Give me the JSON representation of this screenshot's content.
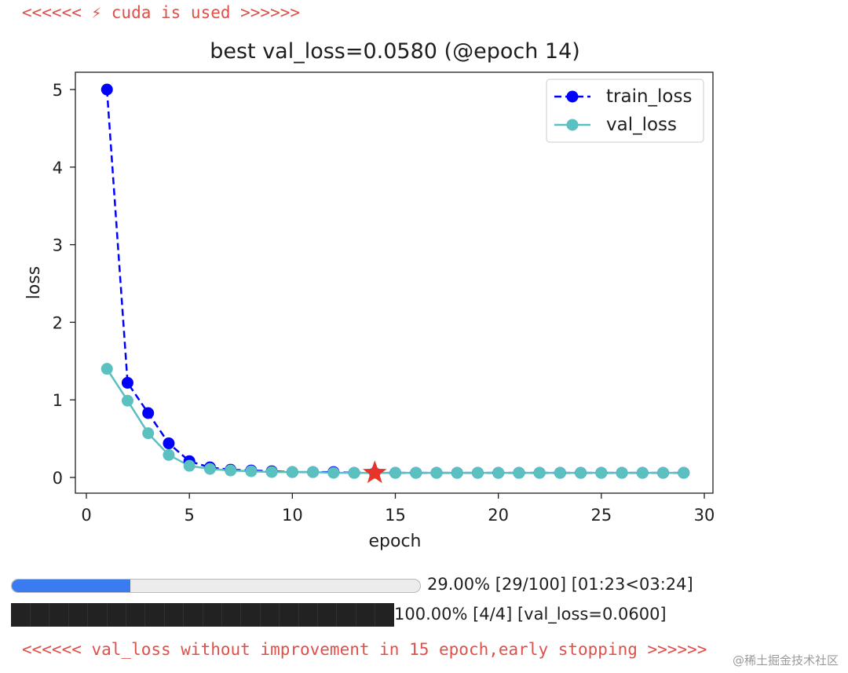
{
  "messages": {
    "cuda": "<<<<<< ⚡ cuda is used >>>>>>",
    "early_stop": "<<<<<< val_loss without improvement in 15 epoch,early stopping >>>>>>"
  },
  "colors": {
    "message": "#e0504a",
    "train": "#0000ff",
    "val": "#5bc0c0",
    "best": "#e8332a",
    "progress": "#3b7bf0"
  },
  "chart_data": {
    "type": "line",
    "title": "best val_loss=0.0580 (@epoch 14)",
    "xlabel": "epoch",
    "ylabel": "loss",
    "xlim": [
      0,
      30
    ],
    "ylim": [
      0,
      5
    ],
    "xticks": [
      0,
      5,
      10,
      15,
      20,
      25,
      30
    ],
    "yticks": [
      0,
      1,
      2,
      3,
      4,
      5
    ],
    "legend_position": "top-right",
    "series": [
      {
        "name": "train_loss",
        "style": "dashed",
        "marker": "circle",
        "x": [
          1,
          2,
          3,
          4,
          5,
          6,
          7,
          8,
          9,
          10,
          11,
          12,
          13,
          14,
          15,
          16,
          17,
          18,
          19,
          20,
          21,
          22,
          23,
          24,
          25,
          26,
          27,
          28,
          29
        ],
        "values": [
          5.0,
          1.22,
          0.83,
          0.44,
          0.21,
          0.13,
          0.1,
          0.09,
          0.08,
          0.07,
          0.07,
          0.07,
          0.06,
          0.06,
          0.06,
          0.06,
          0.06,
          0.06,
          0.06,
          0.06,
          0.06,
          0.06,
          0.06,
          0.06,
          0.06,
          0.06,
          0.06,
          0.06,
          0.06
        ]
      },
      {
        "name": "val_loss",
        "style": "solid",
        "marker": "circle",
        "x": [
          1,
          2,
          3,
          4,
          5,
          6,
          7,
          8,
          9,
          10,
          11,
          12,
          13,
          14,
          15,
          16,
          17,
          18,
          19,
          20,
          21,
          22,
          23,
          24,
          25,
          26,
          27,
          28,
          29
        ],
        "values": [
          1.4,
          0.99,
          0.57,
          0.29,
          0.15,
          0.11,
          0.09,
          0.08,
          0.07,
          0.07,
          0.07,
          0.06,
          0.06,
          0.058,
          0.06,
          0.06,
          0.06,
          0.06,
          0.06,
          0.06,
          0.06,
          0.06,
          0.06,
          0.06,
          0.06,
          0.06,
          0.06,
          0.06,
          0.06
        ]
      }
    ],
    "best_point": {
      "epoch": 14,
      "value": 0.058,
      "marker": "star"
    }
  },
  "progress_epoch": {
    "fraction": 0.29,
    "label": "29.00% [29/100] [01:23<03:24]"
  },
  "progress_batch": {
    "fraction": 1.0,
    "label": "100.00% [4/4] [val_loss=0.0600]"
  },
  "watermark": "@稀土掘金技术社区"
}
